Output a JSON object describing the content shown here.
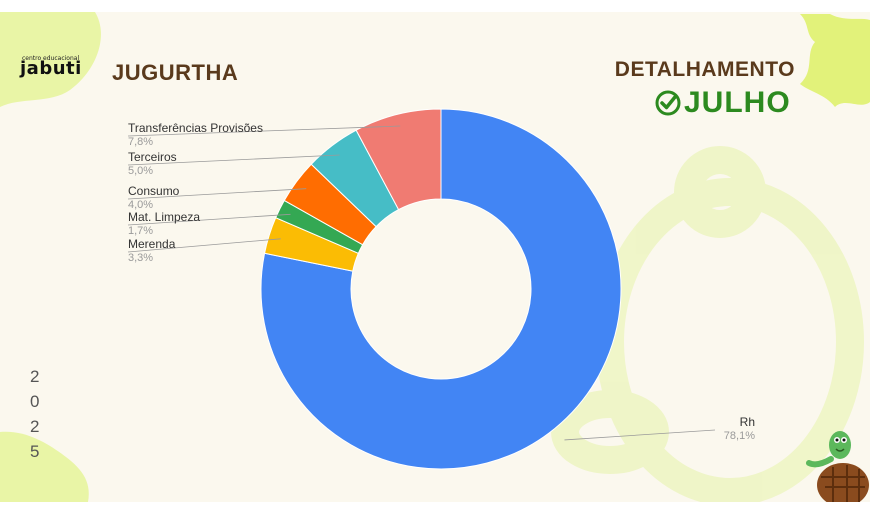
{
  "header": {
    "logo_top": "centro educacional",
    "logo_main": "jabuti",
    "school_name": "JUGURTHA",
    "detail_title": "DETALHAMENTO",
    "month": "JULHO"
  },
  "year_digits": [
    "2",
    "0",
    "2",
    "5"
  ],
  "colors": {
    "background": "#fbf8ee",
    "accent_green": "#2c8a1f",
    "brown": "#5a3a1c",
    "blob": "#e9f5a6"
  },
  "icons": [
    "check-circle-icon",
    "turtle-icon",
    "leaf-icon"
  ],
  "chart_data": {
    "type": "pie",
    "donut": true,
    "slices": [
      {
        "label": "Rh",
        "value": 78.1,
        "display": "78,1%",
        "color": "#4285f4"
      },
      {
        "label": "Merenda",
        "value": 3.3,
        "display": "3,3%",
        "color": "#fbbc04"
      },
      {
        "label": "Mat. Limpeza",
        "value": 1.7,
        "display": "1,7%",
        "color": "#34a853"
      },
      {
        "label": "Consumo",
        "value": 4.0,
        "display": "4,0%",
        "color": "#ff6d01"
      },
      {
        "label": "Terceiros",
        "value": 5.0,
        "display": "5,0%",
        "color": "#46bdc6"
      },
      {
        "label": "Transferências Provisões",
        "value": 7.8,
        "display": "7,8%",
        "color": "#f07b72"
      }
    ]
  }
}
